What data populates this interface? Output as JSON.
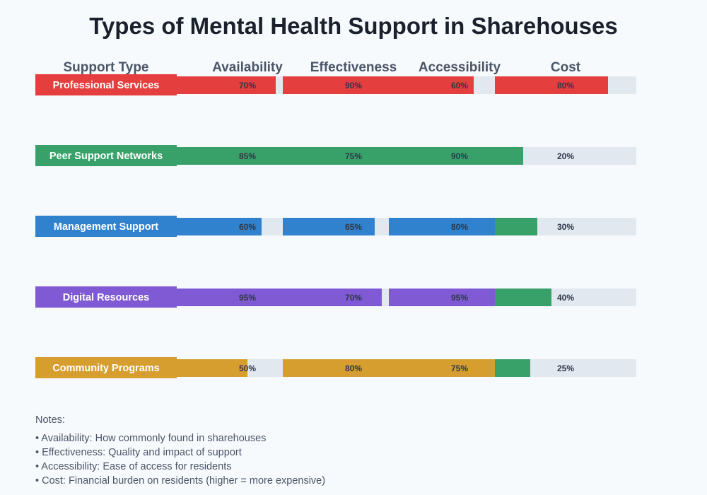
{
  "chart_data": {
    "type": "bar",
    "title": "Types of Mental Health Support in Sharehouses",
    "row_header": "Support Type",
    "columns": [
      "Availability",
      "Effectiveness",
      "Accessibility",
      "Cost"
    ],
    "unit": "%",
    "xlim": [
      0,
      100
    ],
    "track_color": "#e2e8f0",
    "rows": [
      {
        "label": "Professional Services",
        "color": "#e53e3e",
        "values": [
          70,
          90,
          60,
          80
        ],
        "cost_color": "#e53e3e"
      },
      {
        "label": "Peer Support Networks",
        "color": "#38a169",
        "values": [
          85,
          75,
          90,
          20
        ],
        "cost_color": "#38a169"
      },
      {
        "label": "Management Support",
        "color": "#3182ce",
        "values": [
          60,
          65,
          80,
          30
        ],
        "cost_color": "#38a169"
      },
      {
        "label": "Digital Resources",
        "color": "#805ad5",
        "values": [
          95,
          70,
          95,
          40
        ],
        "cost_color": "#38a169"
      },
      {
        "label": "Community Programs",
        "color": "#d69e2e",
        "values": [
          50,
          80,
          75,
          25
        ],
        "cost_color": "#38a169"
      }
    ]
  },
  "notes": {
    "title": "Notes:",
    "items": [
      "• Availability: How commonly found in sharehouses",
      "• Effectiveness: Quality and impact of support",
      "• Accessibility: Ease of access for residents",
      "• Cost: Financial burden on residents (higher = more expensive)"
    ]
  }
}
